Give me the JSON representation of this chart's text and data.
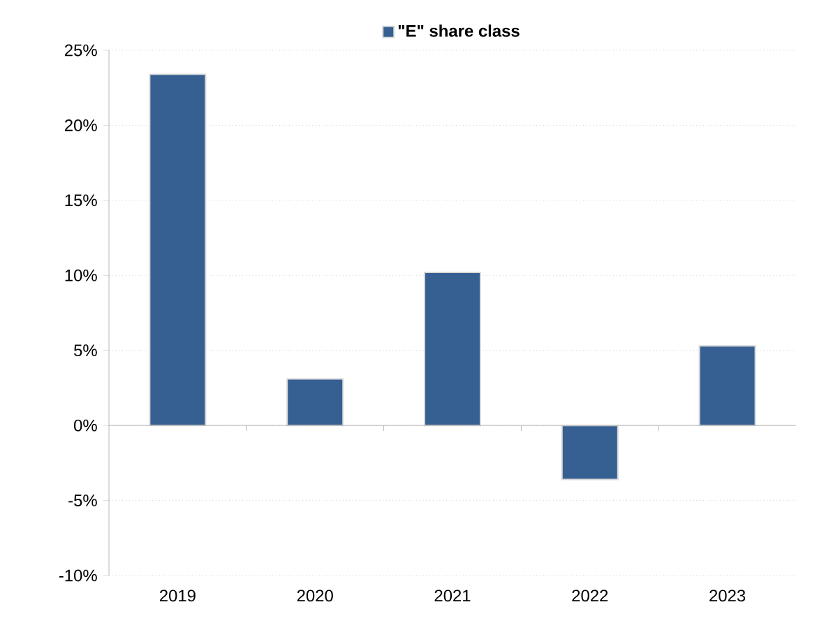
{
  "chart_data": {
    "type": "bar",
    "categories": [
      "2019",
      "2020",
      "2021",
      "2022",
      "2023"
    ],
    "series": [
      {
        "name": "\"E\" share class",
        "color": "#366092",
        "values": [
          23.4,
          3.1,
          10.2,
          -3.6,
          5.3
        ]
      }
    ],
    "ylim": [
      -10,
      25
    ],
    "yticks": [
      {
        "value": -10,
        "label": "-10%"
      },
      {
        "value": -5,
        "label": "-5%"
      },
      {
        "value": 0,
        "label": "0%"
      },
      {
        "value": 5,
        "label": "5%"
      },
      {
        "value": 10,
        "label": "10%"
      },
      {
        "value": 15,
        "label": "15%"
      },
      {
        "value": 20,
        "label": "20%"
      },
      {
        "value": 25,
        "label": "25%"
      }
    ],
    "grid": "y",
    "legend": "top"
  }
}
